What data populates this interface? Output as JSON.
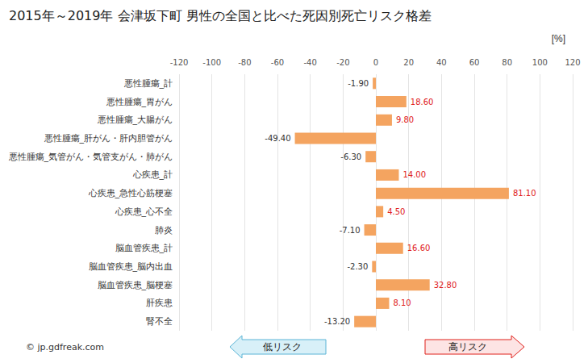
{
  "chart_data": {
    "type": "bar",
    "orientation": "horizontal",
    "title": "2015年～2019年 会津坂下町 男性の全国と比べた死因別死亡リスク格差",
    "x_label": "[%]",
    "categories": [
      "悪性腫瘍_計",
      "悪性腫瘍_胃がん",
      "悪性腫瘍_大腸がん",
      "悪性腫瘍_肝がん・肝内胆管がん",
      "悪性腫瘍_気管がん・気管支がん・肺がん",
      "心疾患_計",
      "心疾患_急性心筋梗塞",
      "心疾患_心不全",
      "肺炎",
      "脳血管疾患_計",
      "脳血管疾患_脳内出血",
      "脳血管疾患_脳梗塞",
      "肝疾患",
      "腎不全"
    ],
    "values": [
      -1.9,
      18.6,
      9.8,
      -49.4,
      -6.3,
      14.0,
      81.1,
      4.5,
      -7.1,
      16.6,
      -2.3,
      32.8,
      8.1,
      -13.2
    ],
    "value_labels": [
      "-1.90",
      "18.60",
      "9.80",
      "-49.40",
      "-6.30",
      "14.00",
      "81.10",
      "4.50",
      "-7.10",
      "16.60",
      "-2.30",
      "32.80",
      "8.10",
      "-13.20"
    ],
    "color": "#f4a460",
    "xlim": [
      -120,
      120
    ],
    "xticks": [
      -120,
      -100,
      -80,
      -60,
      -40,
      -20,
      0,
      20,
      40,
      60,
      80,
      100,
      120
    ],
    "grid": true,
    "data_labels": true,
    "annotations": [
      "低リスク",
      "高リスク",
      "© jp.gdfreak.com"
    ]
  }
}
